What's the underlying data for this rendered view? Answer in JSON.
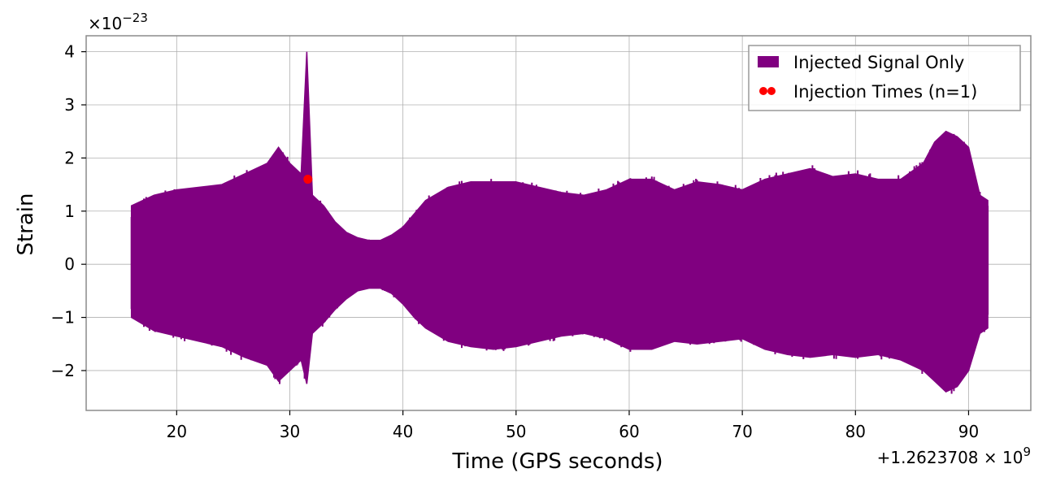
{
  "chart_data": {
    "type": "line",
    "title": "",
    "xlabel": "Time (GPS seconds)",
    "ylabel": "Strain",
    "y_multiplier": "×10",
    "y_multiplier_exponent": "−23",
    "x_offset_label": "+1.2623708 × 10",
    "x_offset_exponent": "9",
    "xlim": [
      12,
      95.5
    ],
    "ylim": [
      -2.75,
      4.3
    ],
    "x_ticks": [
      20,
      30,
      40,
      50,
      60,
      70,
      80,
      90
    ],
    "x_tick_labels": [
      "20",
      "30",
      "40",
      "50",
      "60",
      "70",
      "80",
      "90"
    ],
    "y_ticks": [
      -2,
      -1,
      0,
      1,
      2,
      3,
      4
    ],
    "y_tick_labels": [
      "−2",
      "−1",
      "0",
      "1",
      "2",
      "3",
      "4"
    ],
    "grid": true,
    "legend_position": "top-right",
    "series": [
      {
        "name": "Injected Signal Only",
        "kind": "band",
        "color": "#800080",
        "x": [
          16,
          18,
          20,
          22,
          24,
          26,
          28,
          29,
          30,
          31,
          31.5,
          32,
          33,
          34,
          35,
          36,
          37,
          38,
          39,
          40,
          41,
          42,
          44,
          46,
          48,
          50,
          52,
          54,
          56,
          58,
          60,
          62,
          64,
          66,
          68,
          70,
          72,
          74,
          76,
          78,
          80,
          82,
          84,
          86,
          87,
          88,
          89,
          90,
          91,
          91.7
        ],
        "upper": [
          1.1,
          1.3,
          1.4,
          1.45,
          1.5,
          1.7,
          1.9,
          2.2,
          1.9,
          1.7,
          4.0,
          1.3,
          1.1,
          0.8,
          0.6,
          0.5,
          0.45,
          0.45,
          0.55,
          0.7,
          0.95,
          1.2,
          1.45,
          1.55,
          1.55,
          1.55,
          1.45,
          1.35,
          1.3,
          1.4,
          1.6,
          1.6,
          1.4,
          1.55,
          1.5,
          1.4,
          1.6,
          1.7,
          1.8,
          1.65,
          1.7,
          1.6,
          1.6,
          1.9,
          2.3,
          2.5,
          2.4,
          2.2,
          1.3,
          1.2
        ],
        "lower": [
          -1.0,
          -1.25,
          -1.35,
          -1.45,
          -1.55,
          -1.75,
          -1.9,
          -2.2,
          -2.0,
          -1.8,
          -2.25,
          -1.3,
          -1.1,
          -0.85,
          -0.65,
          -0.5,
          -0.45,
          -0.45,
          -0.55,
          -0.75,
          -1.0,
          -1.2,
          -1.45,
          -1.55,
          -1.6,
          -1.55,
          -1.45,
          -1.35,
          -1.3,
          -1.4,
          -1.6,
          -1.6,
          -1.45,
          -1.5,
          -1.45,
          -1.4,
          -1.6,
          -1.7,
          -1.75,
          -1.7,
          -1.75,
          -1.7,
          -1.8,
          -2.0,
          -2.2,
          -2.4,
          -2.3,
          -2.0,
          -1.3,
          -1.2
        ]
      },
      {
        "name": "Injection Times (n=1)",
        "kind": "scatter",
        "color": "#ff0000",
        "x": [
          31.6
        ],
        "y": [
          1.6
        ]
      }
    ]
  }
}
